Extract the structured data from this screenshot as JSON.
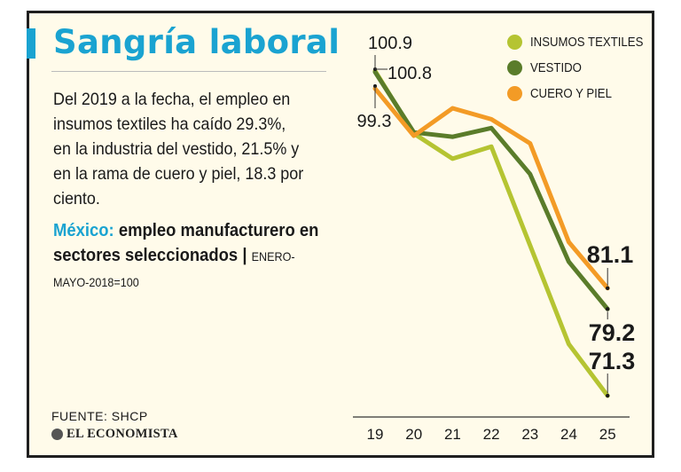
{
  "header": {
    "title": "Sangría laboral"
  },
  "intro": "Del 2019 a la fecha, el empleo en insumos textiles ha caído 29.3%, en la industria del vestido, 21.5% y en la rama de cuero y piel, 18.3 por ciento.",
  "subtitle": {
    "country": "México:",
    "text": " empleo manufacturero en sectores seleccionados",
    "separator": " | ",
    "unit": "ENERO-MAYO-2018=100"
  },
  "footer": {
    "source": "FUENTE: SHCP",
    "brand": "EL ECONOMISTA"
  },
  "colors": {
    "title": "#1aa3d1",
    "insumos": "#b5c432",
    "vestido": "#5a7c2a",
    "cuero": "#f39b26",
    "frame": "#fffbea"
  },
  "chart_data": {
    "type": "line",
    "categories": [
      "19",
      "20",
      "21",
      "22",
      "23",
      "24",
      "25"
    ],
    "series": [
      {
        "name": "INSUMOS TEXTILES",
        "key": "insumos",
        "values": [
          100.9,
          95.2,
          92.9,
          94.0,
          85.0,
          76.0,
          71.3
        ]
      },
      {
        "name": "VESTIDO",
        "key": "vestido",
        "values": [
          100.8,
          95.3,
          94.9,
          95.7,
          91.5,
          83.5,
          79.2
        ]
      },
      {
        "name": "CUERO Y PIEL",
        "key": "cuero",
        "values": [
          99.3,
          95.0,
          97.5,
          96.5,
          94.3,
          85.3,
          81.1
        ]
      }
    ],
    "labels": {
      "start": [
        "100.9",
        "100.8",
        "99.3"
      ],
      "end": [
        "81.1",
        "79.2",
        "71.3"
      ]
    },
    "ylim": [
      70,
      104
    ],
    "legend_position": "top-right",
    "grid": false
  }
}
